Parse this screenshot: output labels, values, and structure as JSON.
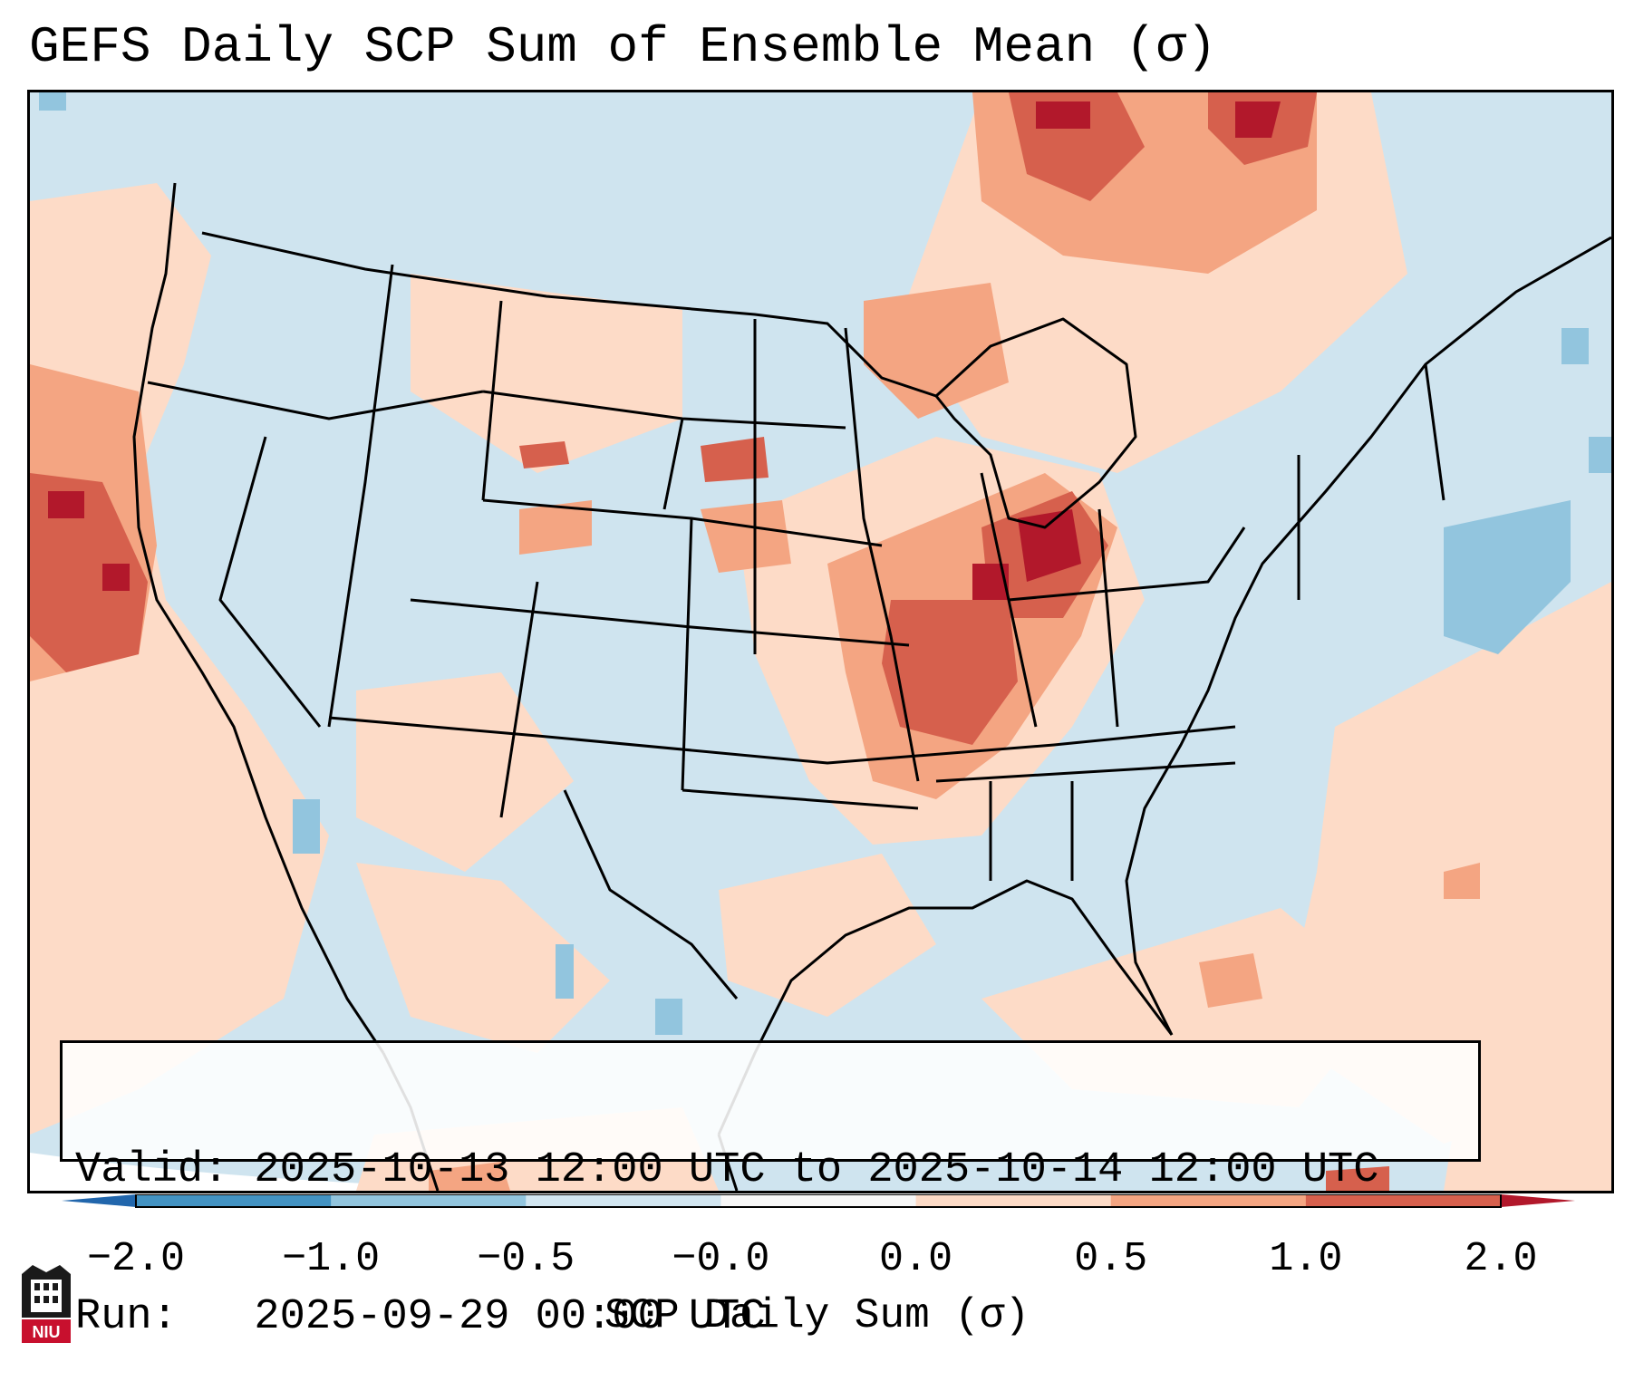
{
  "title": "GEFS Daily SCP Sum of Ensemble Mean (σ)",
  "info": {
    "valid": "Valid: 2025-10-13 12:00 UTC to 2025-10-14 12:00 UTC",
    "run": "Run:   2025-09-29 00:00 UTC"
  },
  "colorbar": {
    "label": "SCP Daily Sum (σ)",
    "ticks": [
      "−2.0",
      "−1.0",
      "−0.5",
      "−0.0",
      "0.0",
      "0.5",
      "1.0",
      "2.0"
    ],
    "bins": [
      {
        "from": "-2.0",
        "to": "-1.0",
        "color": "#4393c3"
      },
      {
        "from": "-1.0",
        "to": "-0.5",
        "color": "#92c5de"
      },
      {
        "from": "-0.5",
        "to": "-0.0",
        "color": "#d1e5f0"
      },
      {
        "from": "-0.0",
        "to": "0.0",
        "color": "#f7f7f7"
      },
      {
        "from": "0.0",
        "to": "0.5",
        "color": "#fddbc7"
      },
      {
        "from": "0.5",
        "to": "1.0",
        "color": "#f4a582"
      },
      {
        "from": "1.0",
        "to": "2.0",
        "color": "#d6604d"
      }
    ],
    "extend_low_color": "#2166ac",
    "extend_high_color": "#b2182b"
  },
  "logo": {
    "text": "NIU"
  },
  "map": {
    "background_color": "#cfe4ef",
    "anomaly_regions": [
      {
        "name": "Middle Mississippi Valley maximum",
        "level": "1.0 to 2.0"
      },
      {
        "name": "Upper Midwest / Great Lakes",
        "level": "0.5 to 1.0"
      },
      {
        "name": "Central California coast",
        "level": "1.0 to 2.0"
      },
      {
        "name": "Northern Ontario",
        "level": "1.0 to 2.0"
      },
      {
        "name": "Western Atlantic",
        "level": "-1.0 to -0.5"
      }
    ]
  }
}
